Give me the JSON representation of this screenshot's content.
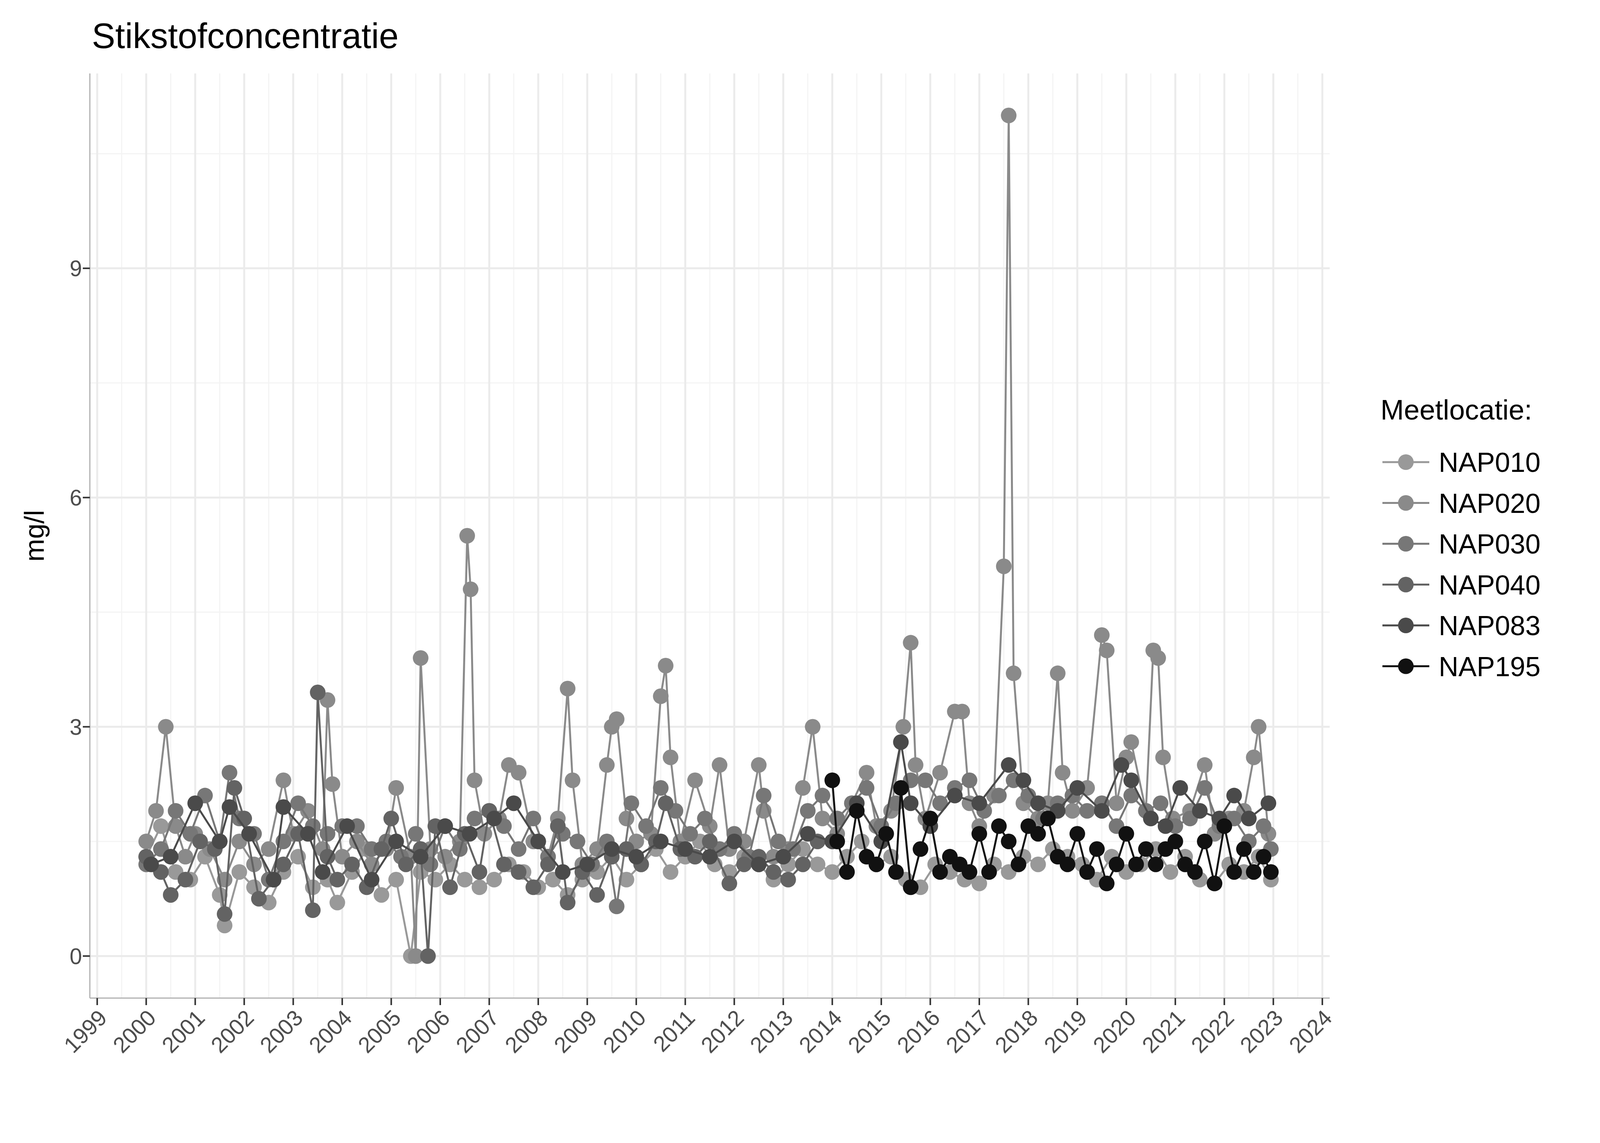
{
  "chart_data": {
    "type": "line",
    "title": "Stikstofconcentratie",
    "y_label": "mg/l",
    "legend_title": "Meetlocatie:",
    "legend": "right",
    "grid": true,
    "marker": "circle",
    "line_style": "solid",
    "xlim": [
      1998.85,
      2024.15
    ],
    "xticks": [
      1999,
      2000,
      2001,
      2002,
      2003,
      2004,
      2005,
      2006,
      2007,
      2008,
      2009,
      2010,
      2011,
      2012,
      2013,
      2014,
      2015,
      2016,
      2017,
      2018,
      2019,
      2020,
      2021,
      2022,
      2023,
      2024
    ],
    "ylim": [
      -0.55,
      11.55
    ],
    "yticks": [
      0,
      3,
      6,
      9
    ],
    "series": [
      {
        "name": "NAP010",
        "color": "#999999",
        "x": [
          2000.0,
          2000.3,
          2000.6,
          2000.9,
          2001.2,
          2001.5,
          2001.6,
          2001.9,
          2002.2,
          2002.5,
          2002.8,
          2003.1,
          2003.4,
          2003.7,
          2003.9,
          2004.2,
          2004.5,
          2004.8,
          2005.1,
          2005.4,
          2005.6,
          2005.9,
          2006.2,
          2006.5,
          2006.8,
          2007.1,
          2007.4,
          2007.7,
          2008.0,
          2008.3,
          2008.6,
          2008.9,
          2009.2,
          2009.5,
          2009.8,
          2010.1,
          2010.4,
          2010.7,
          2011.0,
          2011.3,
          2011.6,
          2011.9,
          2012.2,
          2012.5,
          2012.8,
          2013.1,
          2013.4,
          2013.7,
          2014.0,
          2014.3,
          2014.6,
          2014.9,
          2015.2,
          2015.5,
          2015.8,
          2016.1,
          2016.4,
          2016.7,
          2017.0,
          2017.3,
          2017.6,
          2017.9,
          2018.2,
          2018.5,
          2018.8,
          2019.1,
          2019.4,
          2019.7,
          2020.0,
          2020.3,
          2020.6,
          2020.9,
          2021.2,
          2021.5,
          2021.8,
          2022.1,
          2022.4,
          2022.7,
          2022.95
        ],
        "values": [
          1.3,
          1.7,
          1.1,
          1.0,
          1.3,
          0.8,
          0.4,
          1.1,
          0.9,
          0.7,
          1.1,
          1.3,
          0.9,
          1.0,
          0.7,
          1.1,
          1.4,
          0.8,
          1.0,
          0.0,
          1.1,
          1.0,
          1.2,
          1.0,
          0.9,
          1.0,
          1.2,
          1.1,
          0.9,
          1.0,
          0.8,
          1.0,
          1.1,
          1.3,
          1.0,
          1.2,
          1.4,
          1.1,
          1.3,
          1.5,
          1.2,
          1.1,
          1.3,
          1.2,
          1.0,
          1.2,
          1.4,
          1.2,
          1.1,
          1.3,
          1.5,
          1.2,
          1.3,
          1.0,
          0.9,
          1.2,
          1.1,
          1.0,
          0.95,
          1.2,
          1.1,
          1.3,
          1.2,
          1.4,
          1.3,
          1.2,
          1.0,
          1.3,
          1.1,
          1.2,
          1.4,
          1.1,
          1.3,
          1.0,
          0.95,
          1.2,
          1.1,
          1.3,
          1.0
        ]
      },
      {
        "name": "NAP020",
        "color": "#8a8a8a",
        "x": [
          2000.0,
          2000.2,
          2000.4,
          2000.6,
          2000.8,
          2001.0,
          2001.3,
          2001.6,
          2001.9,
          2002.2,
          2002.5,
          2002.8,
          2003.0,
          2003.3,
          2003.6,
          2003.7,
          2003.8,
          2004.0,
          2004.3,
          2004.6,
          2004.9,
          2005.1,
          2005.4,
          2005.5,
          2005.6,
          2005.8,
          2006.1,
          2006.4,
          2006.55,
          2006.62,
          2006.7,
          2006.9,
          2007.2,
          2007.4,
          2007.6,
          2007.9,
          2008.2,
          2008.4,
          2008.6,
          2008.7,
          2008.9,
          2009.2,
          2009.4,
          2009.5,
          2009.6,
          2009.8,
          2010.0,
          2010.3,
          2010.5,
          2010.6,
          2010.7,
          2010.9,
          2011.2,
          2011.5,
          2011.7,
          2011.9,
          2012.2,
          2012.5,
          2012.6,
          2012.8,
          2013.1,
          2013.4,
          2013.6,
          2013.8,
          2014.1,
          2014.4,
          2014.7,
          2014.9,
          2015.2,
          2015.45,
          2015.6,
          2015.7,
          2015.9,
          2016.2,
          2016.5,
          2016.65,
          2016.8,
          2017.0,
          2017.3,
          2017.5,
          2017.6,
          2017.7,
          2017.9,
          2018.2,
          2018.4,
          2018.6,
          2018.7,
          2018.9,
          2019.2,
          2019.5,
          2019.6,
          2019.8,
          2020.0,
          2020.1,
          2020.4,
          2020.55,
          2020.65,
          2020.75,
          2020.95,
          2021.3,
          2021.6,
          2021.8,
          2022.1,
          2022.4,
          2022.6,
          2022.7,
          2022.9
        ],
        "values": [
          1.5,
          1.9,
          3.0,
          1.7,
          1.3,
          1.6,
          1.4,
          1.0,
          1.5,
          1.2,
          1.4,
          2.3,
          1.6,
          1.9,
          1.4,
          3.35,
          2.25,
          1.3,
          1.5,
          1.2,
          1.4,
          2.2,
          1.3,
          0.0,
          3.9,
          1.4,
          1.3,
          1.5,
          5.5,
          4.8,
          2.3,
          1.6,
          1.8,
          2.5,
          2.4,
          1.5,
          1.3,
          1.8,
          3.5,
          2.3,
          1.2,
          1.4,
          2.5,
          3.0,
          3.1,
          1.8,
          1.5,
          1.6,
          3.4,
          3.8,
          2.6,
          1.5,
          2.3,
          1.7,
          2.5,
          1.4,
          1.5,
          2.5,
          1.9,
          1.3,
          1.4,
          2.2,
          3.0,
          1.8,
          1.6,
          2.0,
          2.4,
          1.7,
          1.9,
          3.0,
          4.1,
          2.5,
          1.8,
          2.4,
          3.2,
          3.2,
          2.0,
          1.7,
          2.1,
          5.1,
          11.0,
          3.7,
          2.0,
          1.8,
          2.0,
          3.7,
          2.4,
          1.9,
          2.2,
          4.2,
          4.0,
          2.0,
          2.6,
          2.8,
          1.9,
          4.0,
          3.9,
          2.6,
          1.8,
          1.9,
          2.5,
          1.6,
          1.8,
          1.9,
          2.6,
          3.0,
          1.6
        ]
      },
      {
        "name": "NAP030",
        "color": "#777777",
        "x": [
          2000.0,
          2000.3,
          2000.6,
          2000.9,
          2001.2,
          2001.5,
          2001.7,
          2001.9,
          2002.2,
          2002.5,
          2002.8,
          2003.1,
          2003.4,
          2003.7,
          2004.0,
          2004.3,
          2004.6,
          2004.9,
          2005.2,
          2005.5,
          2005.8,
          2006.1,
          2006.4,
          2006.7,
          2007.0,
          2007.3,
          2007.6,
          2007.9,
          2008.2,
          2008.5,
          2008.8,
          2009.1,
          2009.4,
          2009.6,
          2009.9,
          2010.2,
          2010.5,
          2010.8,
          2011.1,
          2011.4,
          2011.7,
          2012.0,
          2012.3,
          2012.6,
          2012.9,
          2013.2,
          2013.5,
          2013.8,
          2014.1,
          2014.4,
          2014.7,
          2015.0,
          2015.3,
          2015.6,
          2015.9,
          2016.2,
          2016.5,
          2016.8,
          2017.1,
          2017.4,
          2017.7,
          2018.0,
          2018.3,
          2018.6,
          2018.9,
          2019.2,
          2019.5,
          2019.8,
          2020.1,
          2020.4,
          2020.7,
          2021.0,
          2021.3,
          2021.6,
          2021.9,
          2022.2,
          2022.5,
          2022.8,
          2022.95
        ],
        "values": [
          1.2,
          1.4,
          1.9,
          1.6,
          2.1,
          1.5,
          2.4,
          1.8,
          1.6,
          1.0,
          1.5,
          2.0,
          1.7,
          1.6,
          1.7,
          1.7,
          1.4,
          1.5,
          1.3,
          1.6,
          1.2,
          1.7,
          1.4,
          1.8,
          1.9,
          1.7,
          1.4,
          1.8,
          1.3,
          1.6,
          1.5,
          1.2,
          1.5,
          0.65,
          2.0,
          1.7,
          2.2,
          1.9,
          1.6,
          1.8,
          1.4,
          1.6,
          1.3,
          2.1,
          1.5,
          1.4,
          1.9,
          2.1,
          1.8,
          2.0,
          2.2,
          1.7,
          2.0,
          2.3,
          2.3,
          2.0,
          2.2,
          2.3,
          1.9,
          2.1,
          2.3,
          2.1,
          1.8,
          2.0,
          2.1,
          1.9,
          2.0,
          1.7,
          2.1,
          1.9,
          2.0,
          1.7,
          1.8,
          2.2,
          1.7,
          1.8,
          1.5,
          1.7,
          1.4
        ]
      },
      {
        "name": "NAP040",
        "color": "#636363",
        "x": [
          2000.0,
          2000.3,
          2000.5,
          2000.8,
          2001.1,
          2001.4,
          2001.6,
          2001.8,
          2002.0,
          2002.3,
          2002.6,
          2002.8,
          2003.1,
          2003.4,
          2003.5,
          2003.7,
          2003.9,
          2004.2,
          2004.5,
          2004.8,
          2005.0,
          2005.3,
          2005.6,
          2005.75,
          2005.9,
          2006.2,
          2006.5,
          2006.8,
          2007.0,
          2007.3,
          2007.6,
          2007.9,
          2008.2,
          2008.4,
          2008.6,
          2008.9,
          2009.2,
          2009.5,
          2009.8,
          2010.1,
          2010.4,
          2010.6,
          2010.9,
          2011.2,
          2011.5,
          2011.9,
          2012.2,
          2012.5,
          2012.8,
          2013.1,
          2013.4,
          2013.7
        ],
        "values": [
          1.3,
          1.1,
          0.8,
          1.0,
          1.5,
          1.4,
          0.55,
          2.2,
          1.8,
          0.75,
          1.0,
          1.2,
          1.6,
          0.6,
          3.45,
          1.3,
          1.0,
          1.2,
          0.9,
          1.4,
          1.8,
          1.2,
          1.4,
          0.0,
          1.7,
          0.9,
          1.6,
          1.1,
          1.9,
          1.2,
          1.1,
          0.9,
          1.2,
          1.7,
          0.7,
          1.1,
          0.8,
          1.3,
          1.4,
          1.2,
          1.5,
          2.0,
          1.4,
          1.3,
          1.5,
          0.95,
          1.2,
          1.3,
          1.1,
          1.0,
          1.2,
          1.5
        ]
      },
      {
        "name": "NAP083",
        "color": "#4a4a4a",
        "x": [
          2000.1,
          2000.5,
          2001.0,
          2001.5,
          2001.7,
          2002.1,
          2002.6,
          2002.8,
          2003.3,
          2003.6,
          2004.1,
          2004.6,
          2005.1,
          2005.6,
          2006.1,
          2006.6,
          2007.1,
          2007.5,
          2008.0,
          2008.5,
          2009.0,
          2009.5,
          2010.0,
          2010.5,
          2011.0,
          2011.5,
          2012.0,
          2012.5,
          2013.0,
          2013.5,
          2014.0,
          2014.5,
          2015.0,
          2015.4,
          2015.6,
          2016.0,
          2016.5,
          2017.0,
          2017.6,
          2017.9,
          2018.2,
          2018.6,
          2019.0,
          2019.5,
          2019.9,
          2020.1,
          2020.5,
          2020.8,
          2021.1,
          2021.5,
          2021.9,
          2022.2,
          2022.5,
          2022.9
        ],
        "values": [
          1.2,
          1.3,
          2.0,
          1.5,
          1.95,
          1.6,
          1.0,
          1.95,
          1.6,
          1.1,
          1.7,
          1.0,
          1.5,
          1.3,
          1.7,
          1.6,
          1.8,
          2.0,
          1.5,
          1.1,
          1.2,
          1.4,
          1.3,
          1.5,
          1.4,
          1.3,
          1.5,
          1.2,
          1.3,
          1.6,
          1.5,
          2.0,
          1.5,
          2.8,
          2.0,
          1.7,
          2.1,
          2.0,
          2.5,
          2.3,
          2.0,
          1.9,
          2.2,
          1.9,
          2.5,
          2.3,
          1.8,
          1.7,
          2.2,
          1.9,
          1.8,
          2.1,
          1.8,
          2.0
        ]
      },
      {
        "name": "NAP195",
        "color": "#111111",
        "x": [
          2014.0,
          2014.1,
          2014.3,
          2014.5,
          2014.7,
          2014.9,
          2015.1,
          2015.3,
          2015.4,
          2015.6,
          2015.8,
          2016.0,
          2016.2,
          2016.4,
          2016.6,
          2016.8,
          2017.0,
          2017.2,
          2017.4,
          2017.6,
          2017.8,
          2018.0,
          2018.2,
          2018.4,
          2018.6,
          2018.8,
          2019.0,
          2019.2,
          2019.4,
          2019.6,
          2019.8,
          2020.0,
          2020.2,
          2020.4,
          2020.6,
          2020.8,
          2021.0,
          2021.2,
          2021.4,
          2021.6,
          2021.8,
          2022.0,
          2022.2,
          2022.4,
          2022.6,
          2022.8,
          2022.95
        ],
        "values": [
          2.3,
          1.5,
          1.1,
          1.9,
          1.3,
          1.2,
          1.6,
          1.1,
          2.2,
          0.9,
          1.4,
          1.8,
          1.1,
          1.3,
          1.2,
          1.1,
          1.6,
          1.1,
          1.7,
          1.5,
          1.2,
          1.7,
          1.6,
          1.8,
          1.3,
          1.2,
          1.6,
          1.1,
          1.4,
          0.95,
          1.2,
          1.6,
          1.2,
          1.4,
          1.2,
          1.4,
          1.5,
          1.2,
          1.1,
          1.5,
          0.95,
          1.7,
          1.1,
          1.4,
          1.1,
          1.3,
          1.1
        ]
      }
    ]
  }
}
